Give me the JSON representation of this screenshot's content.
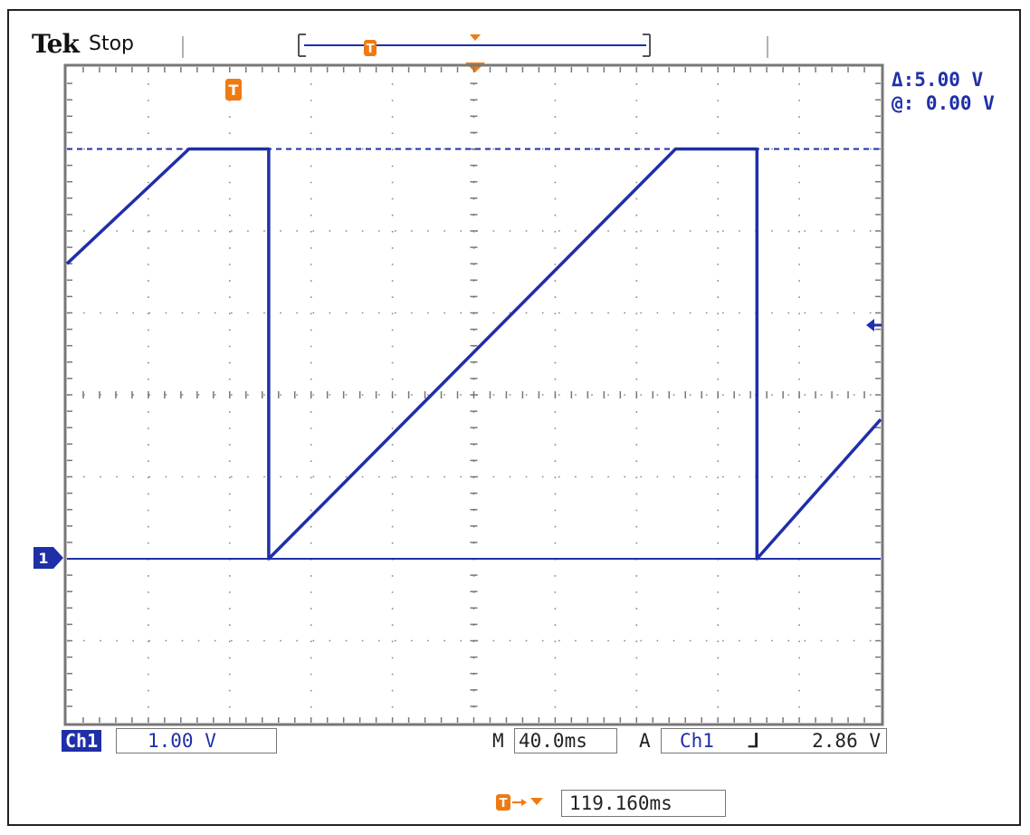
{
  "header": {
    "brand": "Tek",
    "acquisition_state": "Stop",
    "trigger_marker_glyph": "T"
  },
  "cursor": {
    "delta": "Δ:5.00 V",
    "at": "@: 0.00 V"
  },
  "channel": {
    "marker": "1",
    "label": "Ch1",
    "scale": "1.00 V"
  },
  "timebase": {
    "prefix": "M",
    "value": "40.0ms"
  },
  "trigger": {
    "mode": "A",
    "source": "Ch1",
    "slope_glyph": "⅃",
    "level": "2.86 V",
    "offset": "119.160ms"
  },
  "colors": {
    "trace": "#1f2fa8",
    "trigger": "#f07a12",
    "grid": "#888888"
  },
  "icons": {
    "trigger_position": "trigger-t-icon",
    "trigger_offset_arrow": "arrow-right-icon",
    "trigger_point": "triangle-down-icon",
    "trigger_level": "arrow-left-icon"
  },
  "chart_data": {
    "type": "line",
    "title": "",
    "xlabel": "",
    "ylabel": "",
    "x_unit": "ms",
    "y_unit": "V",
    "xlim": [
      -119.16,
      280.84
    ],
    "ylim": [
      -2,
      6
    ],
    "grid": true,
    "series": [
      {
        "name": "",
        "x": [
          -119.16,
          -59.16,
          -39.16,
          -20,
          -20,
          180,
          200,
          220,
          220,
          280.84
        ],
        "y": [
          3.6,
          5.0,
          5.0,
          5.0,
          0.0,
          5.0,
          5.0,
          5.0,
          0.0,
          1.7
        ]
      }
    ],
    "reference_lines": [
      {
        "axis": "y",
        "value": 5.0,
        "style": "dashed"
      }
    ]
  }
}
